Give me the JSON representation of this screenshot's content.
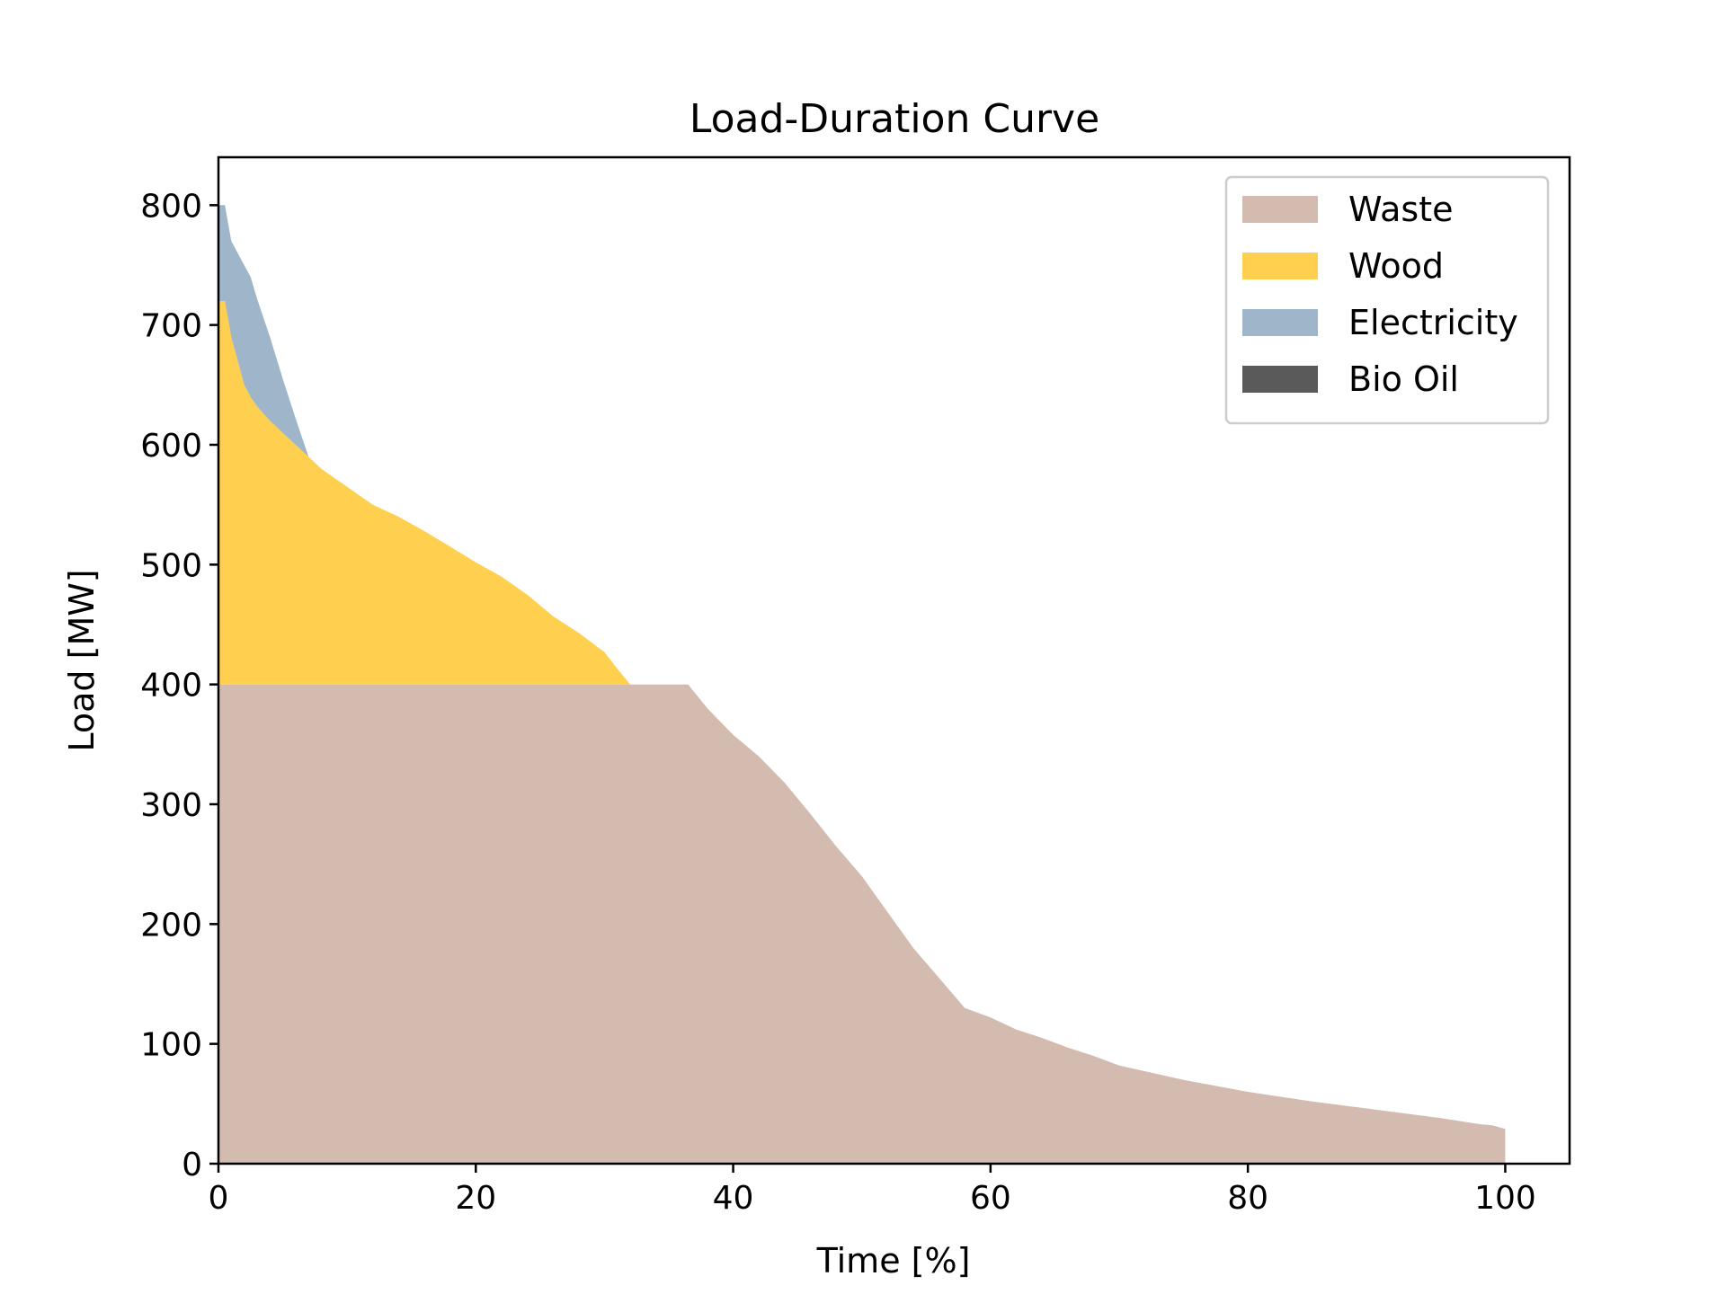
{
  "chart_data": {
    "type": "area",
    "title": "Load-Duration Curve",
    "xlabel": "Time [%]",
    "ylabel": "Load [MW]",
    "xlim": [
      0,
      105
    ],
    "ylim": [
      0,
      840
    ],
    "xticks": [
      0,
      20,
      40,
      60,
      80,
      100
    ],
    "yticks": [
      0,
      100,
      200,
      300,
      400,
      500,
      600,
      700,
      800
    ],
    "xtick_labels": [
      "0",
      "20",
      "40",
      "60",
      "80",
      "100"
    ],
    "ytick_labels": [
      "0",
      "100",
      "200",
      "300",
      "400",
      "500",
      "600",
      "700",
      "800"
    ],
    "grid": false,
    "stacked": true,
    "legend_position": "top-right",
    "x": [
      0,
      0.5,
      1,
      2,
      2.5,
      3,
      4,
      5,
      6,
      7,
      8,
      10,
      12,
      14,
      16,
      18,
      20,
      22,
      24,
      26,
      28,
      30,
      31,
      32,
      34,
      36,
      36.5,
      38,
      40,
      42,
      44,
      46,
      48,
      50,
      52,
      54,
      56,
      58,
      60,
      62,
      64,
      66,
      68,
      70,
      75,
      80,
      85,
      90,
      95,
      98,
      99,
      100
    ],
    "series": [
      {
        "name": "Waste",
        "color": "#d4bbaf",
        "values": [
          400,
          400,
          400,
          400,
          400,
          400,
          400,
          400,
          400,
          400,
          400,
          400,
          400,
          400,
          400,
          400,
          400,
          400,
          400,
          400,
          400,
          400,
          400,
          400,
          400,
          400,
          400,
          380,
          358,
          340,
          318,
          292,
          265,
          240,
          210,
          180,
          155,
          130,
          122,
          112,
          105,
          97,
          90,
          82,
          70,
          60,
          52,
          45,
          38,
          33,
          32,
          29
        ]
      },
      {
        "name": "Wood",
        "color": "#ffd04f",
        "values": [
          320,
          320,
          290,
          250,
          240,
          232,
          220,
          210,
          200,
          190,
          180,
          165,
          150,
          140,
          128,
          115,
          102,
          90,
          75,
          57,
          43,
          27,
          13,
          0,
          0,
          0,
          0,
          0,
          0,
          0,
          0,
          0,
          0,
          0,
          0,
          0,
          0,
          0,
          0,
          0,
          0,
          0,
          0,
          0,
          0,
          0,
          0,
          0,
          0,
          0,
          0,
          0
        ]
      },
      {
        "name": "Electricity",
        "color": "#9fb5ca",
        "values": [
          80,
          80,
          80,
          100,
          100,
          90,
          70,
          45,
          22,
          0,
          0,
          0,
          0,
          0,
          0,
          0,
          0,
          0,
          0,
          0,
          0,
          0,
          0,
          0,
          0,
          0,
          0,
          0,
          0,
          0,
          0,
          0,
          0,
          0,
          0,
          0,
          0,
          0,
          0,
          0,
          0,
          0,
          0,
          0,
          0,
          0,
          0,
          0,
          0,
          0,
          0,
          0
        ]
      },
      {
        "name": "Bio Oil",
        "color": "#5a5a5a",
        "values": [
          0,
          0,
          0,
          0,
          0,
          0,
          0,
          0,
          0,
          0,
          0,
          0,
          0,
          0,
          0,
          0,
          0,
          0,
          0,
          0,
          0,
          0,
          0,
          0,
          0,
          0,
          0,
          0,
          0,
          0,
          0,
          0,
          0,
          0,
          0,
          0,
          0,
          0,
          0,
          0,
          0,
          0,
          0,
          0,
          0,
          0,
          0,
          0,
          0,
          0,
          0,
          0
        ]
      }
    ]
  }
}
